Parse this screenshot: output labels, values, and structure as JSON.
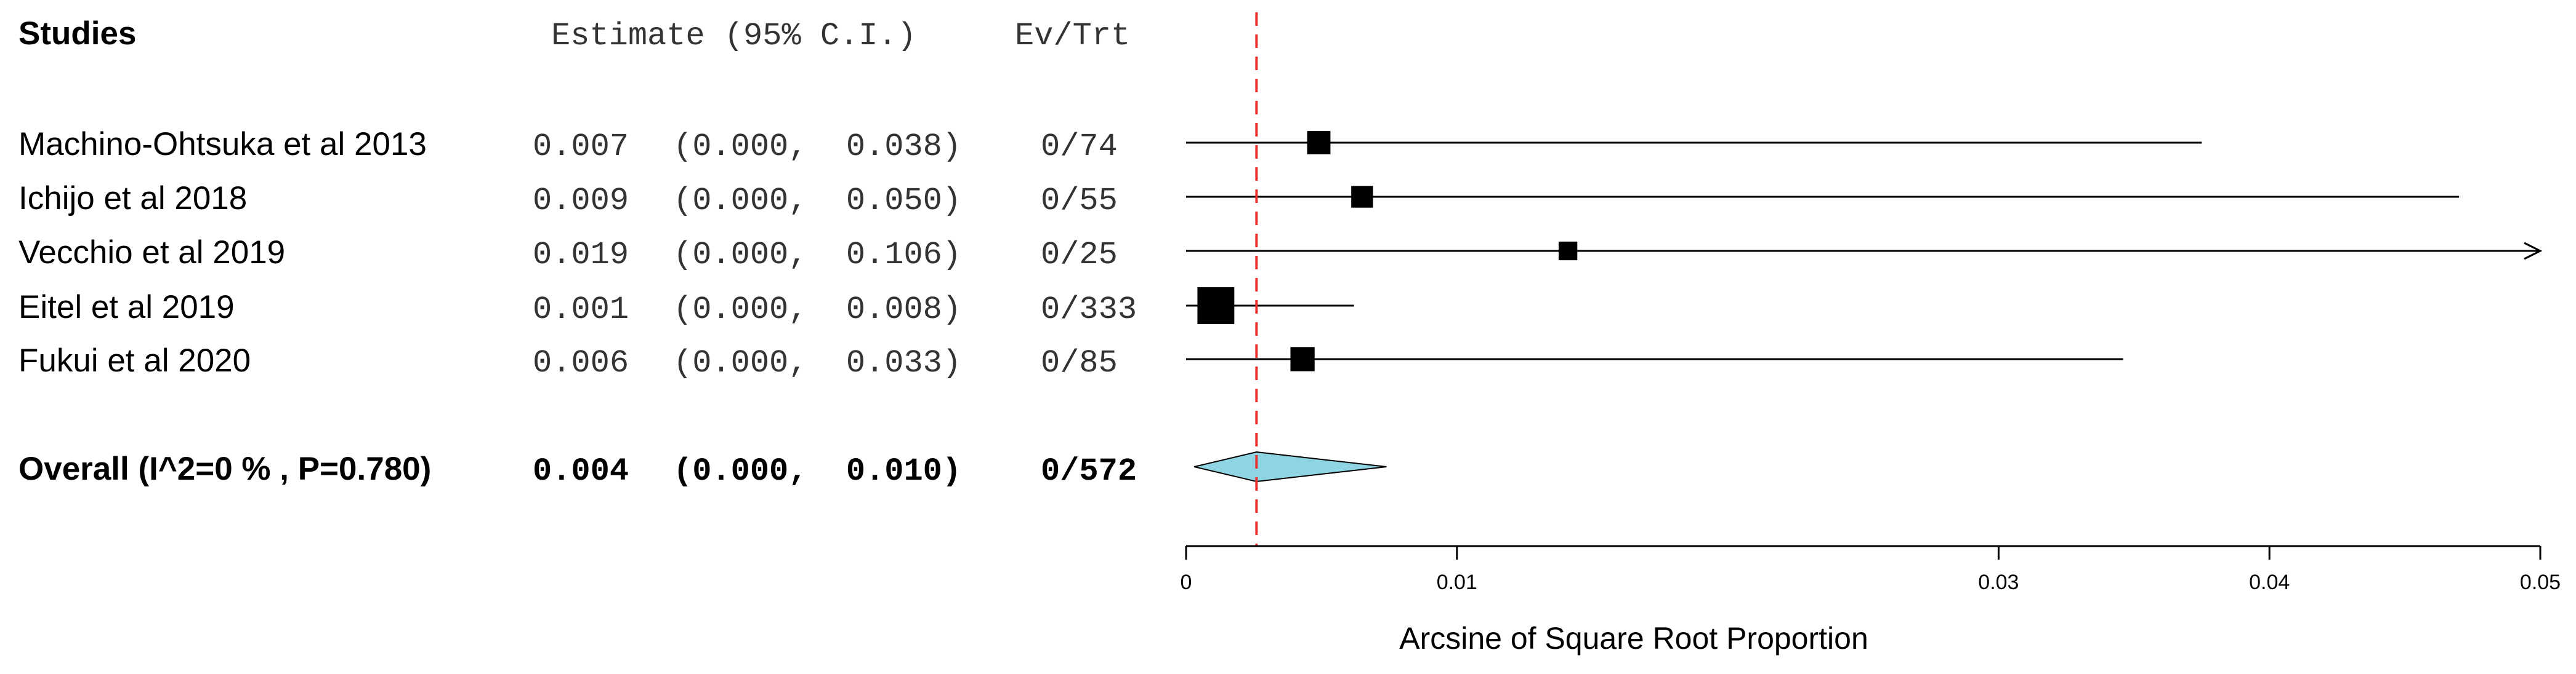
{
  "header": {
    "studies": "Studies",
    "estimate": "Estimate (95% C.I.)",
    "ev_trt": "Ev/Trt"
  },
  "chart_data": {
    "type": "forest",
    "xlabel": "Arcsine of Square Root Proportion",
    "xlim": [
      0,
      0.05
    ],
    "xticks": [
      0,
      0.01,
      0.03,
      0.04,
      0.05
    ],
    "xtick_labels": [
      "0",
      "0.01",
      "0.03",
      "0.04",
      "0.05"
    ],
    "reference_line": 0.0026,
    "reference_line_color": "#e8302c",
    "marker_color": "#000000",
    "diamond_color": "#8fd4e2",
    "studies": [
      {
        "name": "Machino-Ohtsuka et al 2013",
        "est_text": "0.007",
        "ci_text": "(0.000,  0.038)",
        "events": "0/74",
        "point": 0.0049,
        "lo": 0.0,
        "hi": 0.0375,
        "weight": 0.13
      },
      {
        "name": "Ichijo et al 2018",
        "est_text": "0.009",
        "ci_text": "(0.000,  0.050)",
        "events": "0/55",
        "point": 0.0065,
        "lo": 0.0,
        "hi": 0.047,
        "weight": 0.1
      },
      {
        "name": "Vecchio et al 2019",
        "est_text": "0.019",
        "ci_text": "(0.000,  0.106)",
        "events": "0/25",
        "point": 0.0141,
        "lo": 0.0,
        "hi": 0.05,
        "weight": 0.05,
        "arrow_right": true
      },
      {
        "name": "Eitel et al 2019",
        "est_text": "0.001",
        "ci_text": "(0.000,  0.008)",
        "events": "0/333",
        "point": 0.0011,
        "lo": 0.0,
        "hi": 0.0062,
        "weight": 0.58
      },
      {
        "name": "Fukui et al 2020",
        "est_text": "0.006",
        "ci_text": "(0.000,  0.033)",
        "events": "0/85",
        "point": 0.0043,
        "lo": 0.0,
        "hi": 0.0346,
        "weight": 0.15
      }
    ],
    "overall": {
      "label": "Overall (I^2=0 % , P=0.780)",
      "est_text": "0.004",
      "ci_text": "(0.000,  0.010)",
      "events": "0/572",
      "point": 0.0026,
      "lo": 0.0003,
      "hi": 0.0074
    }
  }
}
